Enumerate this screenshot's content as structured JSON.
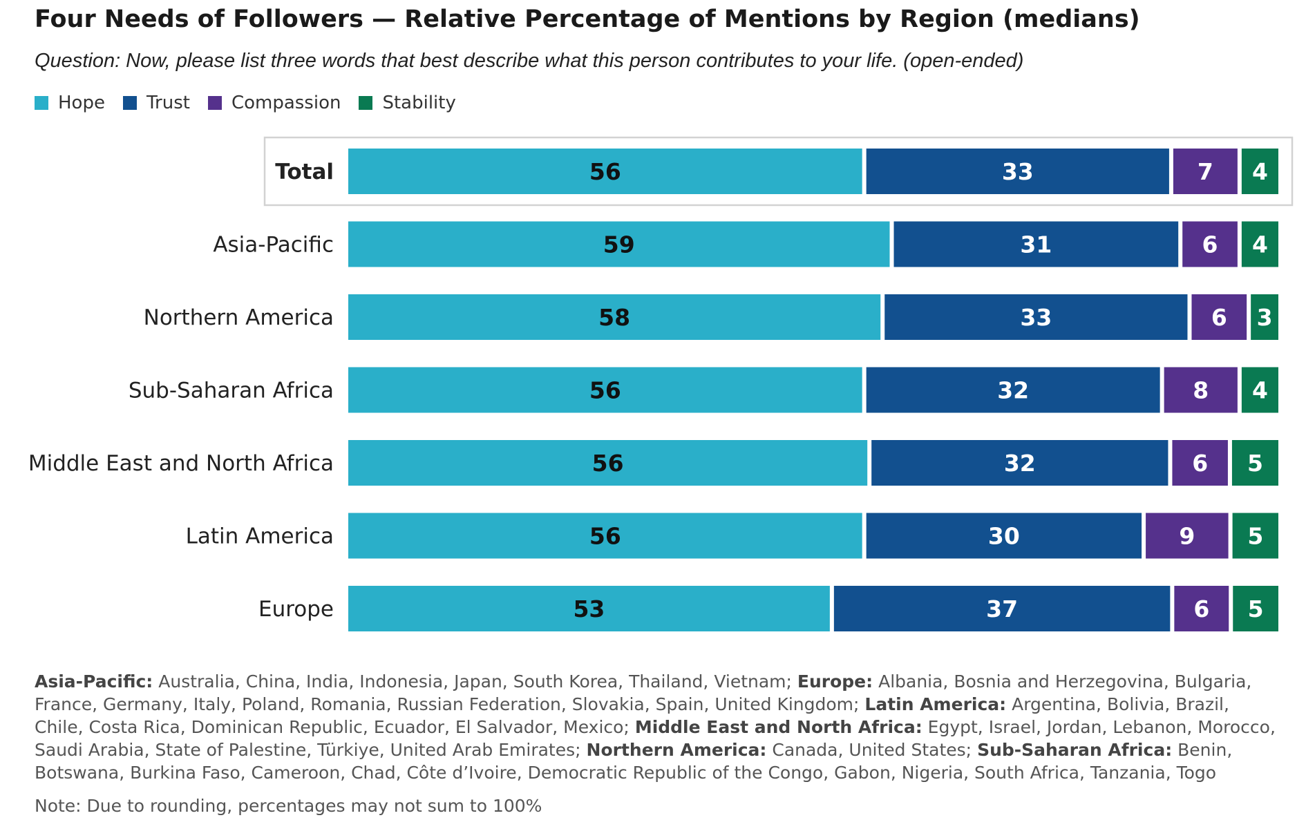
{
  "title": "Four Needs of Followers — Relative Percentage of Mentions by Region (medians)",
  "subtitle": "Question: Now, please list three words that best describe what this person contributes to your life. (open-ended)",
  "colors": {
    "hope": "#2aafc9",
    "trust": "#12508f",
    "compassion": "#55318c",
    "stability": "#0a7a52",
    "highlight_border": "#d2d2d2"
  },
  "chart_data": {
    "type": "bar",
    "orientation": "horizontal",
    "stacked": true,
    "categories": [
      "Total",
      "Asia-Pacific",
      "Northern America",
      "Sub-Saharan Africa",
      "Middle East and North Africa",
      "Latin America",
      "Europe"
    ],
    "highlighted_category": "Total",
    "series": [
      {
        "name": "Hope",
        "values": [
          56,
          59,
          58,
          56,
          56,
          56,
          53
        ]
      },
      {
        "name": "Trust",
        "values": [
          33,
          31,
          33,
          32,
          32,
          30,
          37
        ]
      },
      {
        "name": "Compassion",
        "values": [
          7,
          6,
          6,
          8,
          6,
          9,
          6
        ]
      },
      {
        "name": "Stability",
        "values": [
          4,
          4,
          3,
          4,
          5,
          5,
          5
        ]
      }
    ],
    "data_labels": true,
    "legend_position": "top-left",
    "grid": false
  },
  "footnote": [
    {
      "region": "Asia-Pacific:",
      "countries": "Australia, China, India, Indonesia, Japan, South Korea, Thailand, Vietnam;"
    },
    {
      "region": "Europe:",
      "countries": "Albania, Bosnia and Herzegovina, Bulgaria, France, Germany, Italy, Poland, Romania, Russian Federation, Slovakia, Spain, United Kingdom;"
    },
    {
      "region": "Latin America:",
      "countries": "Argentina, Bolivia, Brazil, Chile, Costa Rica, Dominican Republic, Ecuador, El Salvador, Mexico;"
    },
    {
      "region": "Middle East and North Africa:",
      "countries": "Egypt, Israel, Jordan, Lebanon, Morocco, Saudi Arabia, State of Palestine, Türkiye, United Arab Emirates;"
    },
    {
      "region": "Northern America:",
      "countries": "Canada, United States;"
    },
    {
      "region": "Sub-Saharan Africa:",
      "countries": "Benin, Botswana, Burkina Faso, Cameroon, Chad, Côte d’Ivoire, Democratic Republic of the Congo, Gabon, Nigeria, South Africa, Tanzania, Togo"
    }
  ],
  "note": "Note: Due to rounding, percentages may not sum to 100%"
}
